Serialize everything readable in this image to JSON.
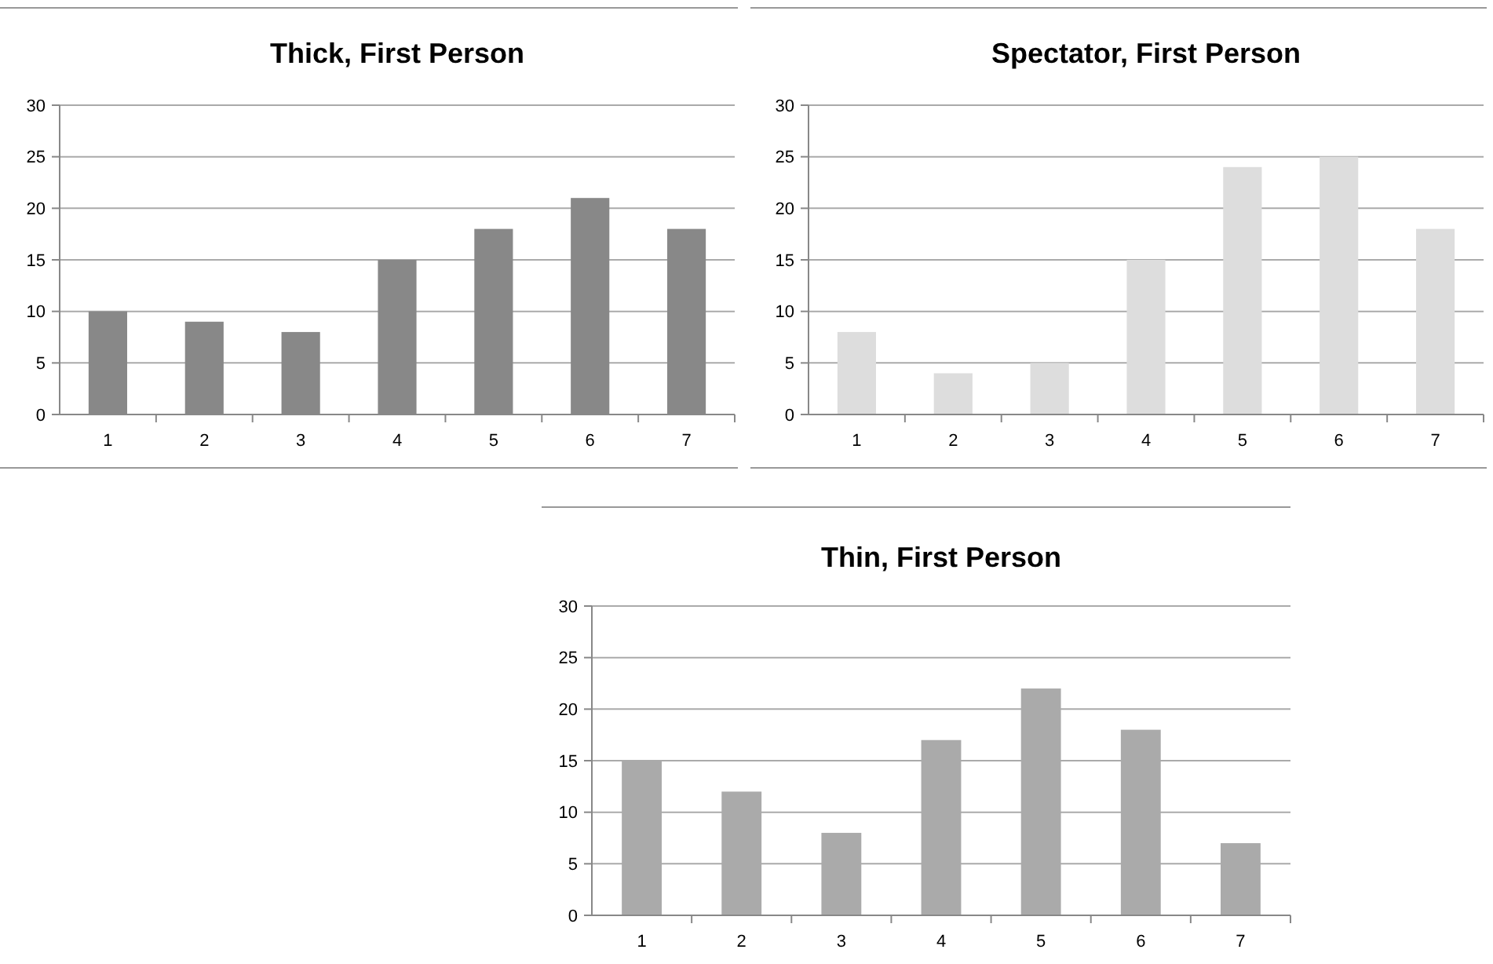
{
  "chart_data": [
    {
      "type": "bar",
      "title": "Thick, First Person",
      "categories": [
        "1",
        "2",
        "3",
        "4",
        "5",
        "6",
        "7"
      ],
      "values": [
        10,
        9,
        8,
        15,
        18,
        21,
        18
      ],
      "color": "#888888",
      "ylim": [
        0,
        30
      ],
      "yticks": [
        0,
        5,
        10,
        15,
        20,
        25,
        30
      ],
      "grid": "y"
    },
    {
      "type": "bar",
      "title": "Spectator, First Person",
      "categories": [
        "1",
        "2",
        "3",
        "4",
        "5",
        "6",
        "7"
      ],
      "values": [
        8,
        4,
        5,
        15,
        24,
        25,
        18
      ],
      "color": "#dddddd",
      "ylim": [
        0,
        30
      ],
      "yticks": [
        0,
        5,
        10,
        15,
        20,
        25,
        30
      ],
      "grid": "y"
    },
    {
      "type": "bar",
      "title": "Thin, First Person",
      "categories": [
        "1",
        "2",
        "3",
        "4",
        "5",
        "6",
        "7"
      ],
      "values": [
        15,
        12,
        8,
        17,
        22,
        18,
        7
      ],
      "color": "#aaaaaa",
      "ylim": [
        0,
        30
      ],
      "yticks": [
        0,
        5,
        10,
        15,
        20,
        25,
        30
      ],
      "grid": "y"
    }
  ]
}
